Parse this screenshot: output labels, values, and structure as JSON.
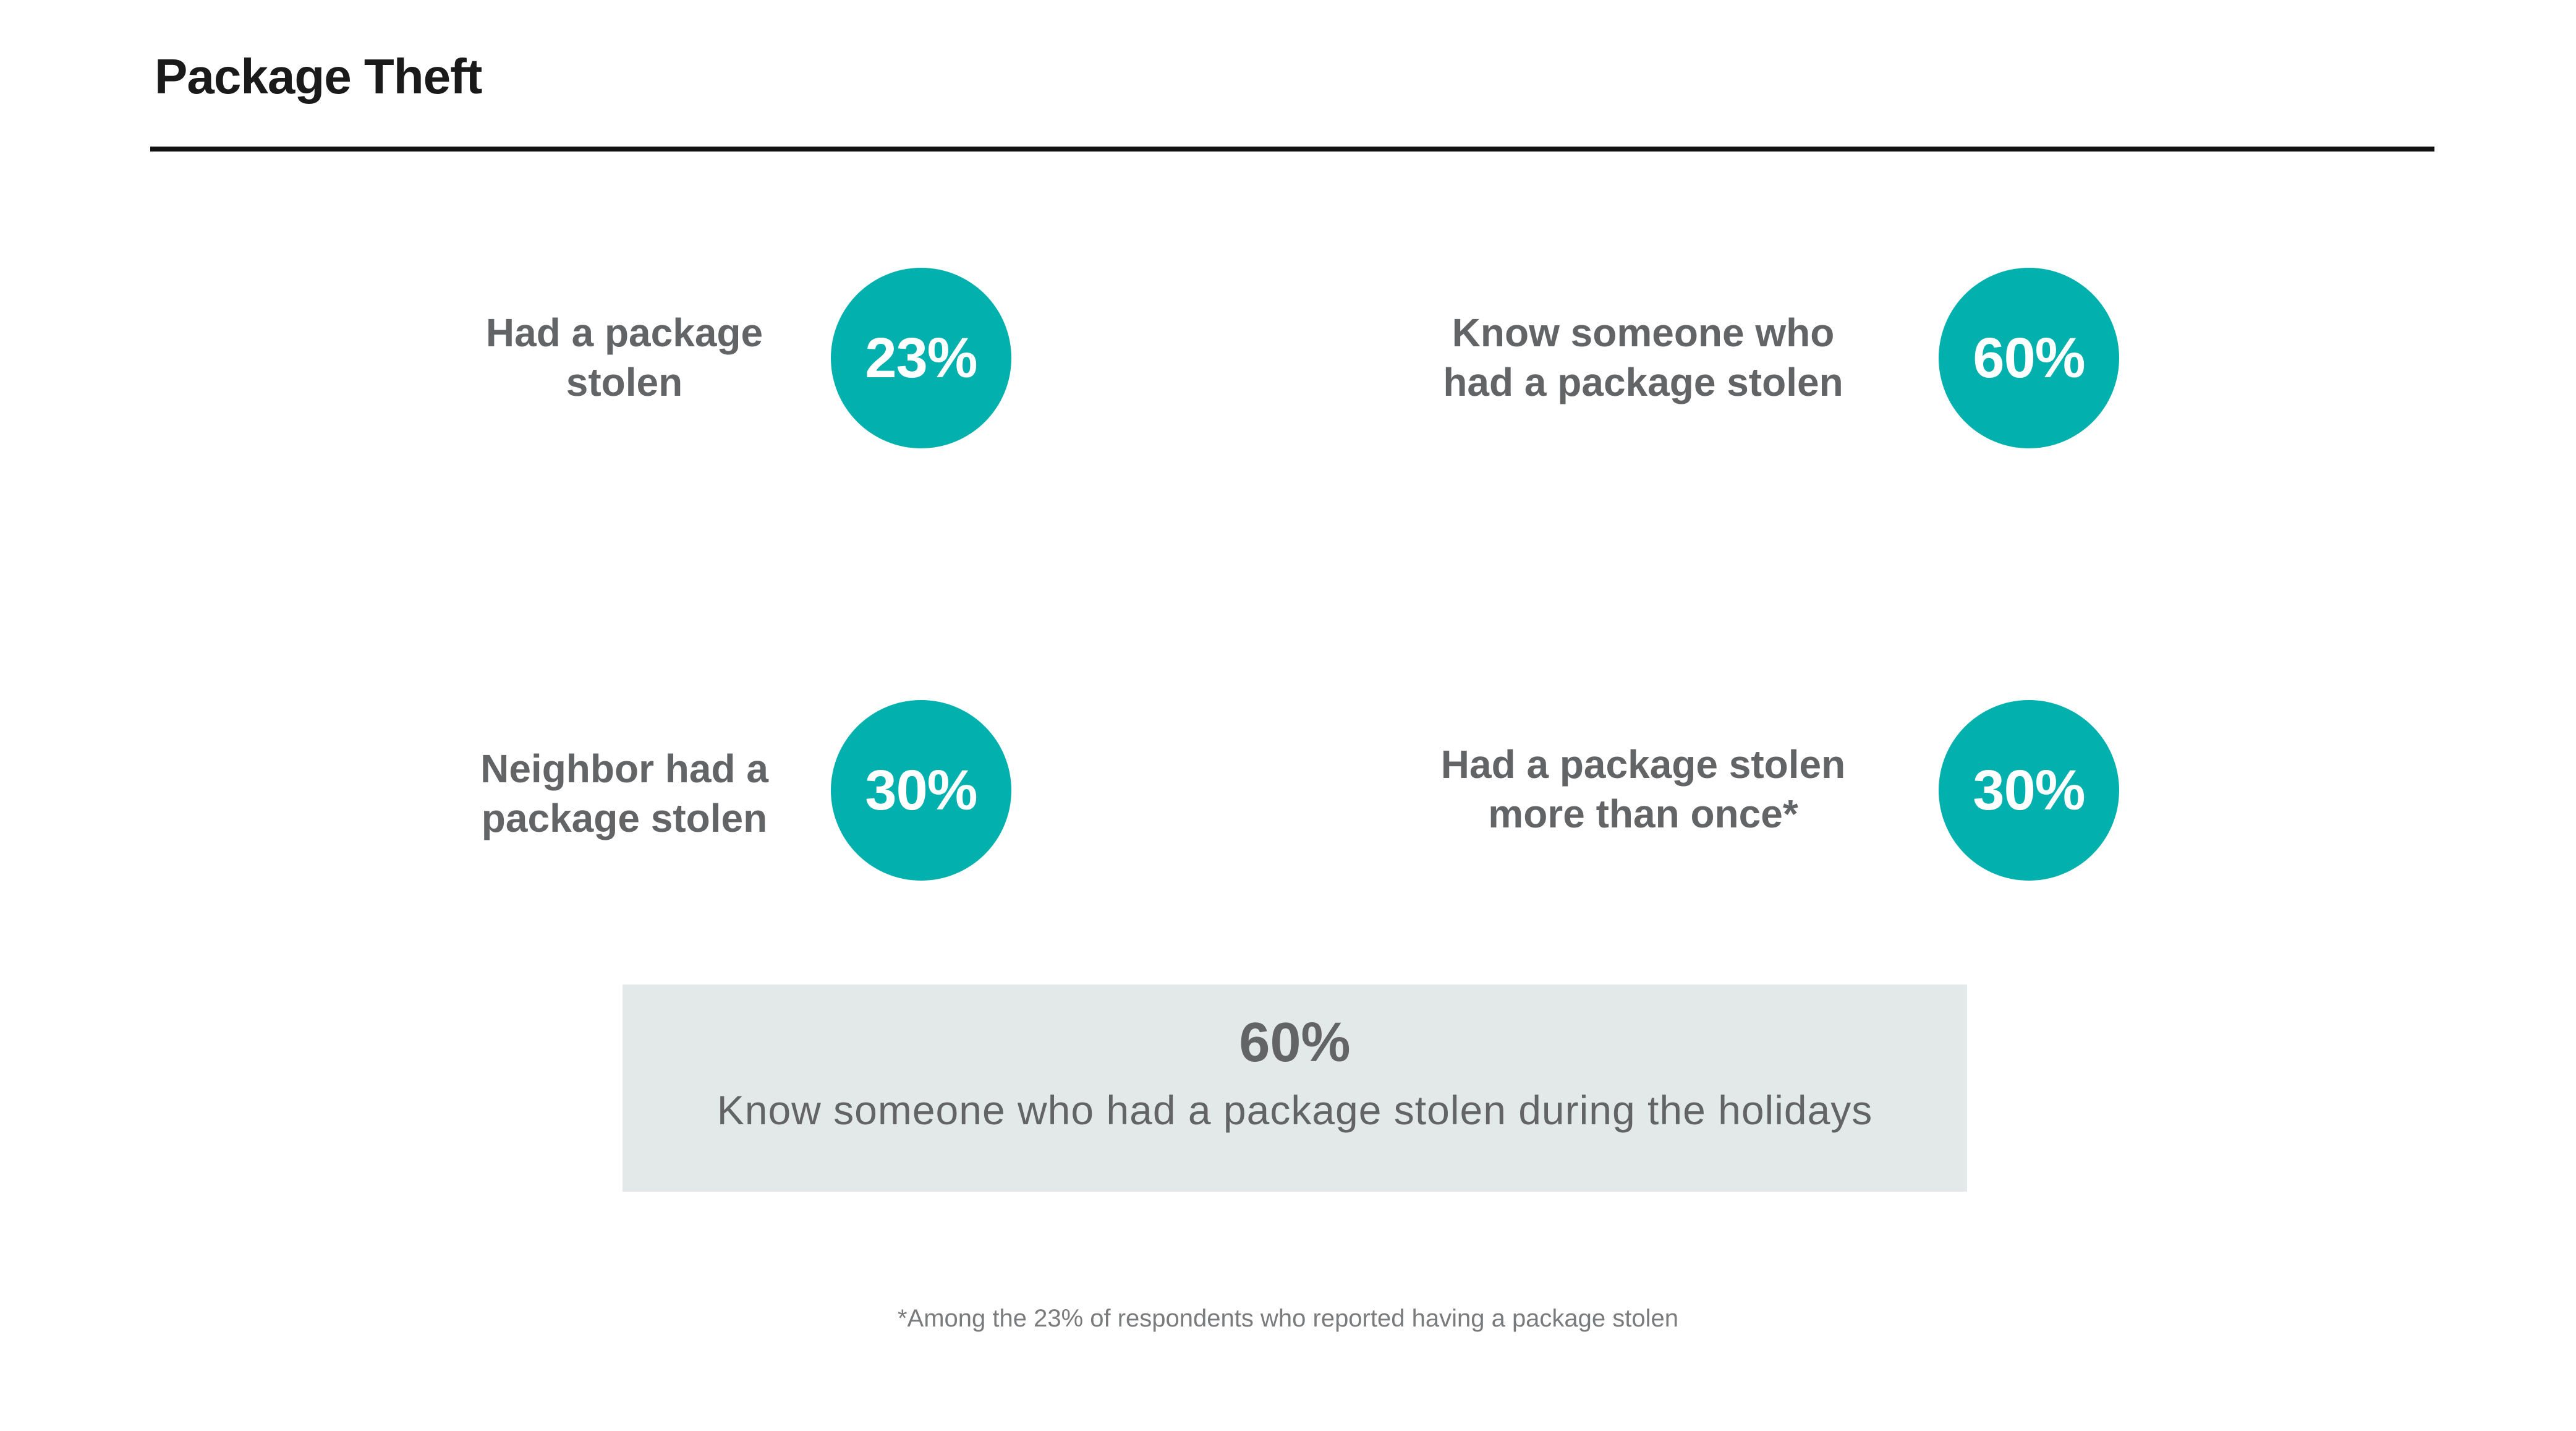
{
  "title": "Package Theft",
  "stats": [
    {
      "label": "Had a package\nstolen",
      "value": "23%"
    },
    {
      "label": "Know someone who\nhad a package stolen",
      "value": "60%"
    },
    {
      "label": "Neighbor had a\npackage stolen",
      "value": "30%"
    },
    {
      "label": "Had a package stolen\nmore than once*",
      "value": "30%"
    }
  ],
  "callout": {
    "value": "60%",
    "text": "Know someone who had a package stolen during the holidays"
  },
  "footnote": "*Among the 23% of respondents who reported having a package stolen",
  "colors": {
    "accent": "#02b1ad",
    "label_gray": "#636466",
    "callout_bg": "#e3e8e8",
    "title": "#1a1a1a"
  }
}
